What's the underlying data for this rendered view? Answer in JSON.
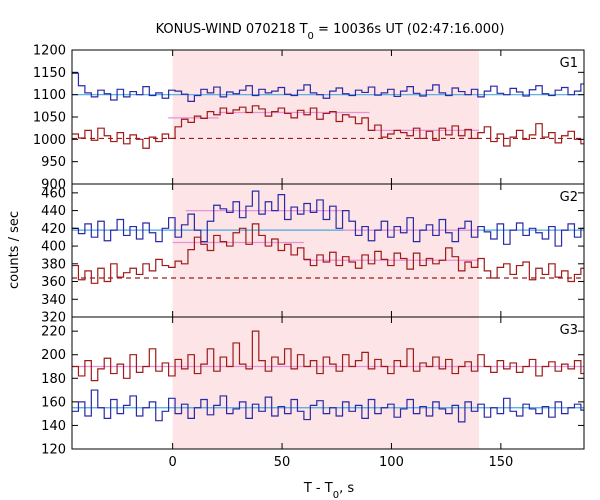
{
  "chart_data": {
    "type": "line",
    "title": {
      "prefix": "KONUS-WIND 070218 T",
      "subscript": "0",
      "suffix": " = 10036s UT (02:47:16.000)"
    },
    "xlabel": {
      "main": "T - T",
      "subscript": "0",
      "suffix": ", s"
    },
    "ylabel": "counts / sec",
    "xlim": [
      -46,
      188
    ],
    "x_ticks": [
      0,
      50,
      100,
      150
    ],
    "x_tick_labels": [
      "0",
      "50",
      "100",
      "150"
    ],
    "shaded_region": {
      "x0": 0,
      "x1": 140,
      "color": "#fde4e6"
    },
    "bin_width": 2.944,
    "colors": {
      "counts_red": "#a01a1a",
      "counts_blue": "#2a2aa8",
      "background_fit": "#4aa8e0",
      "background_fit_red": "#a01a1a",
      "source_level": "#e890d8"
    },
    "panels": [
      {
        "label": "G1",
        "ylim": [
          900,
          1200
        ],
        "y_ticks": [
          900,
          950,
          1000,
          1050,
          1100,
          1150,
          1200
        ],
        "y_tick_labels": [
          "900",
          "950",
          "1000",
          "1050",
          "1100",
          "1150",
          "1200"
        ],
        "series": [
          {
            "style": "blue-step",
            "values": [
              1148,
              1120,
              1104,
              1095,
              1110,
              1102,
              1088,
              1112,
              1095,
              1107,
              1100,
              1118,
              1098,
              1104,
              1092,
              1110,
              1108,
              1101,
              1085,
              1098,
              1112,
              1104,
              1117,
              1095,
              1106,
              1102,
              1110,
              1120,
              1098,
              1112,
              1104,
              1108,
              1116,
              1101,
              1098,
              1110,
              1122,
              1104,
              1100,
              1092,
              1108,
              1115,
              1102,
              1098,
              1110,
              1105,
              1117,
              1099,
              1104,
              1112,
              1096,
              1108,
              1118,
              1103,
              1097,
              1110,
              1122,
              1104,
              1098,
              1115,
              1107,
              1100,
              1112,
              1095,
              1108,
              1119,
              1103,
              1100,
              1114,
              1106,
              1097,
              1111,
              1120,
              1102,
              1098,
              1110,
              1116,
              1100,
              1108,
              1124,
              1096,
              1085
            ]
          },
          {
            "style": "red-step",
            "values": [
              1012,
              1003,
              1020,
              998,
              1025,
              1008,
              995,
              1015,
              990,
              1010,
              1000,
              980,
              1005,
              995,
              1012,
              1002,
              1028,
              1045,
              1038,
              1052,
              1047,
              1062,
              1055,
              1070,
              1058,
              1066,
              1072,
              1060,
              1075,
              1068,
              1052,
              1062,
              1070,
              1058,
              1048,
              1065,
              1055,
              1070,
              1045,
              1058,
              1062,
              1040,
              1055,
              1050,
              1035,
              1048,
              1020,
              1032,
              1005,
              1012,
              1020,
              1015,
              1008,
              1025,
              1002,
              1018,
              998,
              1025,
              1010,
              1030,
              1008,
              1022,
              1002,
              1015,
              1028,
              995,
              1012,
              985,
              1005,
              1020,
              1000,
              1010,
              1035,
              1005,
              1015,
              992,
              1008,
              1018,
              1000,
              990,
              1012,
              985
            ]
          }
        ],
        "fits": [
          {
            "style": "background-solid",
            "y": 1100
          },
          {
            "style": "background-dashed",
            "y": 1002
          },
          {
            "style": "source-level",
            "x0": -2,
            "x1": 21,
            "y": 1048
          },
          {
            "style": "source-level",
            "x0": 21,
            "x1": 90,
            "y": 1060
          },
          {
            "style": "source-level",
            "x0": 90,
            "x1": 140,
            "y": 1020
          }
        ]
      },
      {
        "label": "G2",
        "ylim": [
          320,
          470
        ],
        "y_ticks": [
          320,
          340,
          360,
          380,
          400,
          420,
          440,
          460
        ],
        "y_tick_labels": [
          "320",
          "340",
          "360",
          "380",
          "400",
          "420",
          "440",
          "460"
        ],
        "series": [
          {
            "style": "blue-step",
            "values": [
              420,
              414,
              425,
              410,
              428,
              406,
              418,
              430,
              412,
              422,
              408,
              426,
              415,
              405,
              420,
              432,
              410,
              424,
              436,
              418,
              405,
              428,
              446,
              442,
              438,
              450,
              432,
              445,
              462,
              436,
              450,
              440,
              458,
              430,
              444,
              436,
              448,
              438,
              452,
              430,
              445,
              420,
              440,
              428,
              412,
              422,
              406,
              418,
              428,
              410,
              422,
              415,
              432,
              405,
              418,
              424,
              412,
              430,
              415,
              405,
              420,
              428,
              410,
              422,
              416,
              408,
              425,
              402,
              418,
              426,
              412,
              420,
              415,
              408,
              422,
              400,
              418,
              425,
              410,
              420,
              416,
              422
            ]
          },
          {
            "style": "red-step",
            "values": [
              378,
              362,
              372,
              358,
              375,
              360,
              380,
              365,
              370,
              375,
              368,
              380,
              372,
              385,
              378,
              376,
              383,
              380,
              396,
              410,
              402,
              395,
              412,
              405,
              400,
              415,
              420,
              402,
              425,
              412,
              400,
              408,
              395,
              402,
              390,
              398,
              385,
              378,
              390,
              382,
              393,
              378,
              388,
              382,
              375,
              390,
              380,
              394,
              385,
              378,
              392,
              386,
              374,
              392,
              378,
              386,
              380,
              384,
              398,
              388,
              372,
              382,
              376,
              386,
              372,
              364,
              376,
              380,
              368,
              378,
              382,
              362,
              375,
              368,
              380,
              365,
              372,
              360,
              368,
              375,
              362,
              370
            ]
          }
        ],
        "fits": [
          {
            "style": "background-solid",
            "y": 418
          },
          {
            "style": "background-dashed",
            "y": 364
          },
          {
            "style": "source-level",
            "x0": 0,
            "x1": 60,
            "y": 404
          },
          {
            "style": "source-level",
            "x0": 60,
            "x1": 140,
            "y": 384
          },
          {
            "style": "source-level",
            "x0": 6,
            "x1": 78,
            "y": 440
          },
          {
            "style": "source-level",
            "x0": 78,
            "x1": 140,
            "y": 418
          }
        ]
      },
      {
        "label": "G3",
        "ylim": [
          120,
          232
        ],
        "y_ticks": [
          120,
          140,
          160,
          180,
          200,
          220
        ],
        "y_tick_labels": [
          "120",
          "140",
          "160",
          "180",
          "200",
          "220"
        ],
        "series": [
          {
            "style": "red-step",
            "values": [
              190,
              182,
              195,
              178,
              188,
              197,
              184,
              192,
              180,
              200,
              185,
              190,
              205,
              186,
              193,
              182,
              196,
              188,
              200,
              184,
              192,
              205,
              186,
              198,
              190,
              210,
              192,
              188,
              220,
              195,
              186,
              198,
              192,
              205,
              188,
              200,
              190,
              195,
              184,
              198,
              192,
              186,
              200,
              190,
              195,
              202,
              188,
              196,
              190,
              184,
              195,
              190,
              205,
              186,
              193,
              190,
              198,
              188,
              196,
              184,
              190,
              194,
              186,
              200,
              190,
              185,
              195,
              188,
              193,
              185,
              190,
              196,
              182,
              190,
              194,
              186,
              192,
              188,
              195,
              184,
              190,
              188
            ]
          },
          {
            "style": "blue-step",
            "values": [
              152,
              160,
              148,
              170,
              155,
              146,
              162,
              150,
              157,
              165,
              148,
              155,
              160,
              144,
              152,
              163,
              150,
              158,
              146,
              155,
              162,
              149,
              157,
              165,
              150,
              154,
              160,
              146,
              158,
              152,
              164,
              148,
              156,
              150,
              162,
              152,
              145,
              157,
              161,
              150,
              155,
              148,
              160,
              152,
              157,
              146,
              162,
              150,
              155,
              158,
              147,
              154,
              162,
              150,
              156,
              148,
              160,
              154,
              150,
              157,
              143,
              160,
              152,
              158,
              147,
              155,
              150,
              163,
              152,
              148,
              158,
              154,
              150,
              156,
              147,
              160,
              150,
              155,
              158,
              153,
              160,
              162
            ]
          }
        ],
        "fits": [
          {
            "style": "background-solid",
            "y": 155
          },
          {
            "style": "background-dashed-pink",
            "y": 190
          }
        ]
      }
    ]
  }
}
